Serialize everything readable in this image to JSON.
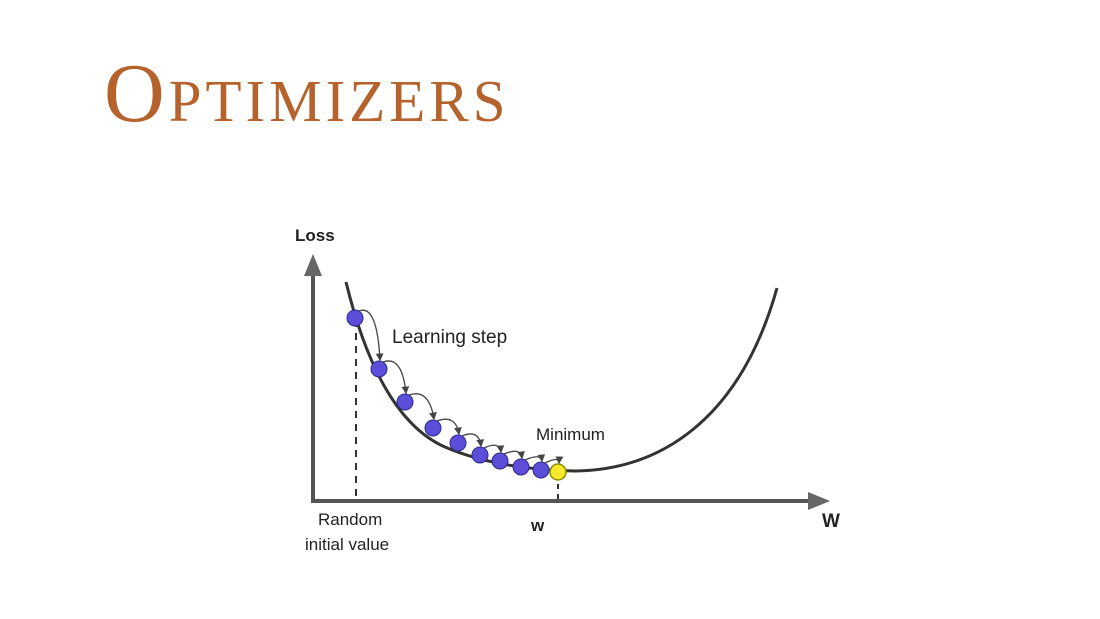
{
  "slide": {
    "title": "Optimizers",
    "title_color": "#b5622c"
  },
  "diagram": {
    "y_axis_label": "Loss",
    "x_axis_label": "W",
    "start_label_line1": "Random",
    "start_label_line2": "initial value",
    "step_label": "Learning step",
    "minimum_label": "Minimum",
    "optimum_tick_label": "w",
    "step_count": 9,
    "colors": {
      "curve": "#333333",
      "axis": "#555555",
      "step_point": "#5b4fd9",
      "minimum_point": "#f5ea2a"
    }
  }
}
